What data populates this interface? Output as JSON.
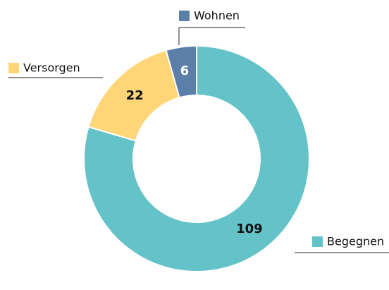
{
  "chart_data": {
    "type": "pie",
    "categories": [
      "Begegnen",
      "Versorgen",
      "Wohnen"
    ],
    "values": [
      109,
      22,
      6
    ],
    "colors": [
      "#64c3c8",
      "#fed677",
      "#5b7fa8"
    ],
    "donut": true
  }
}
